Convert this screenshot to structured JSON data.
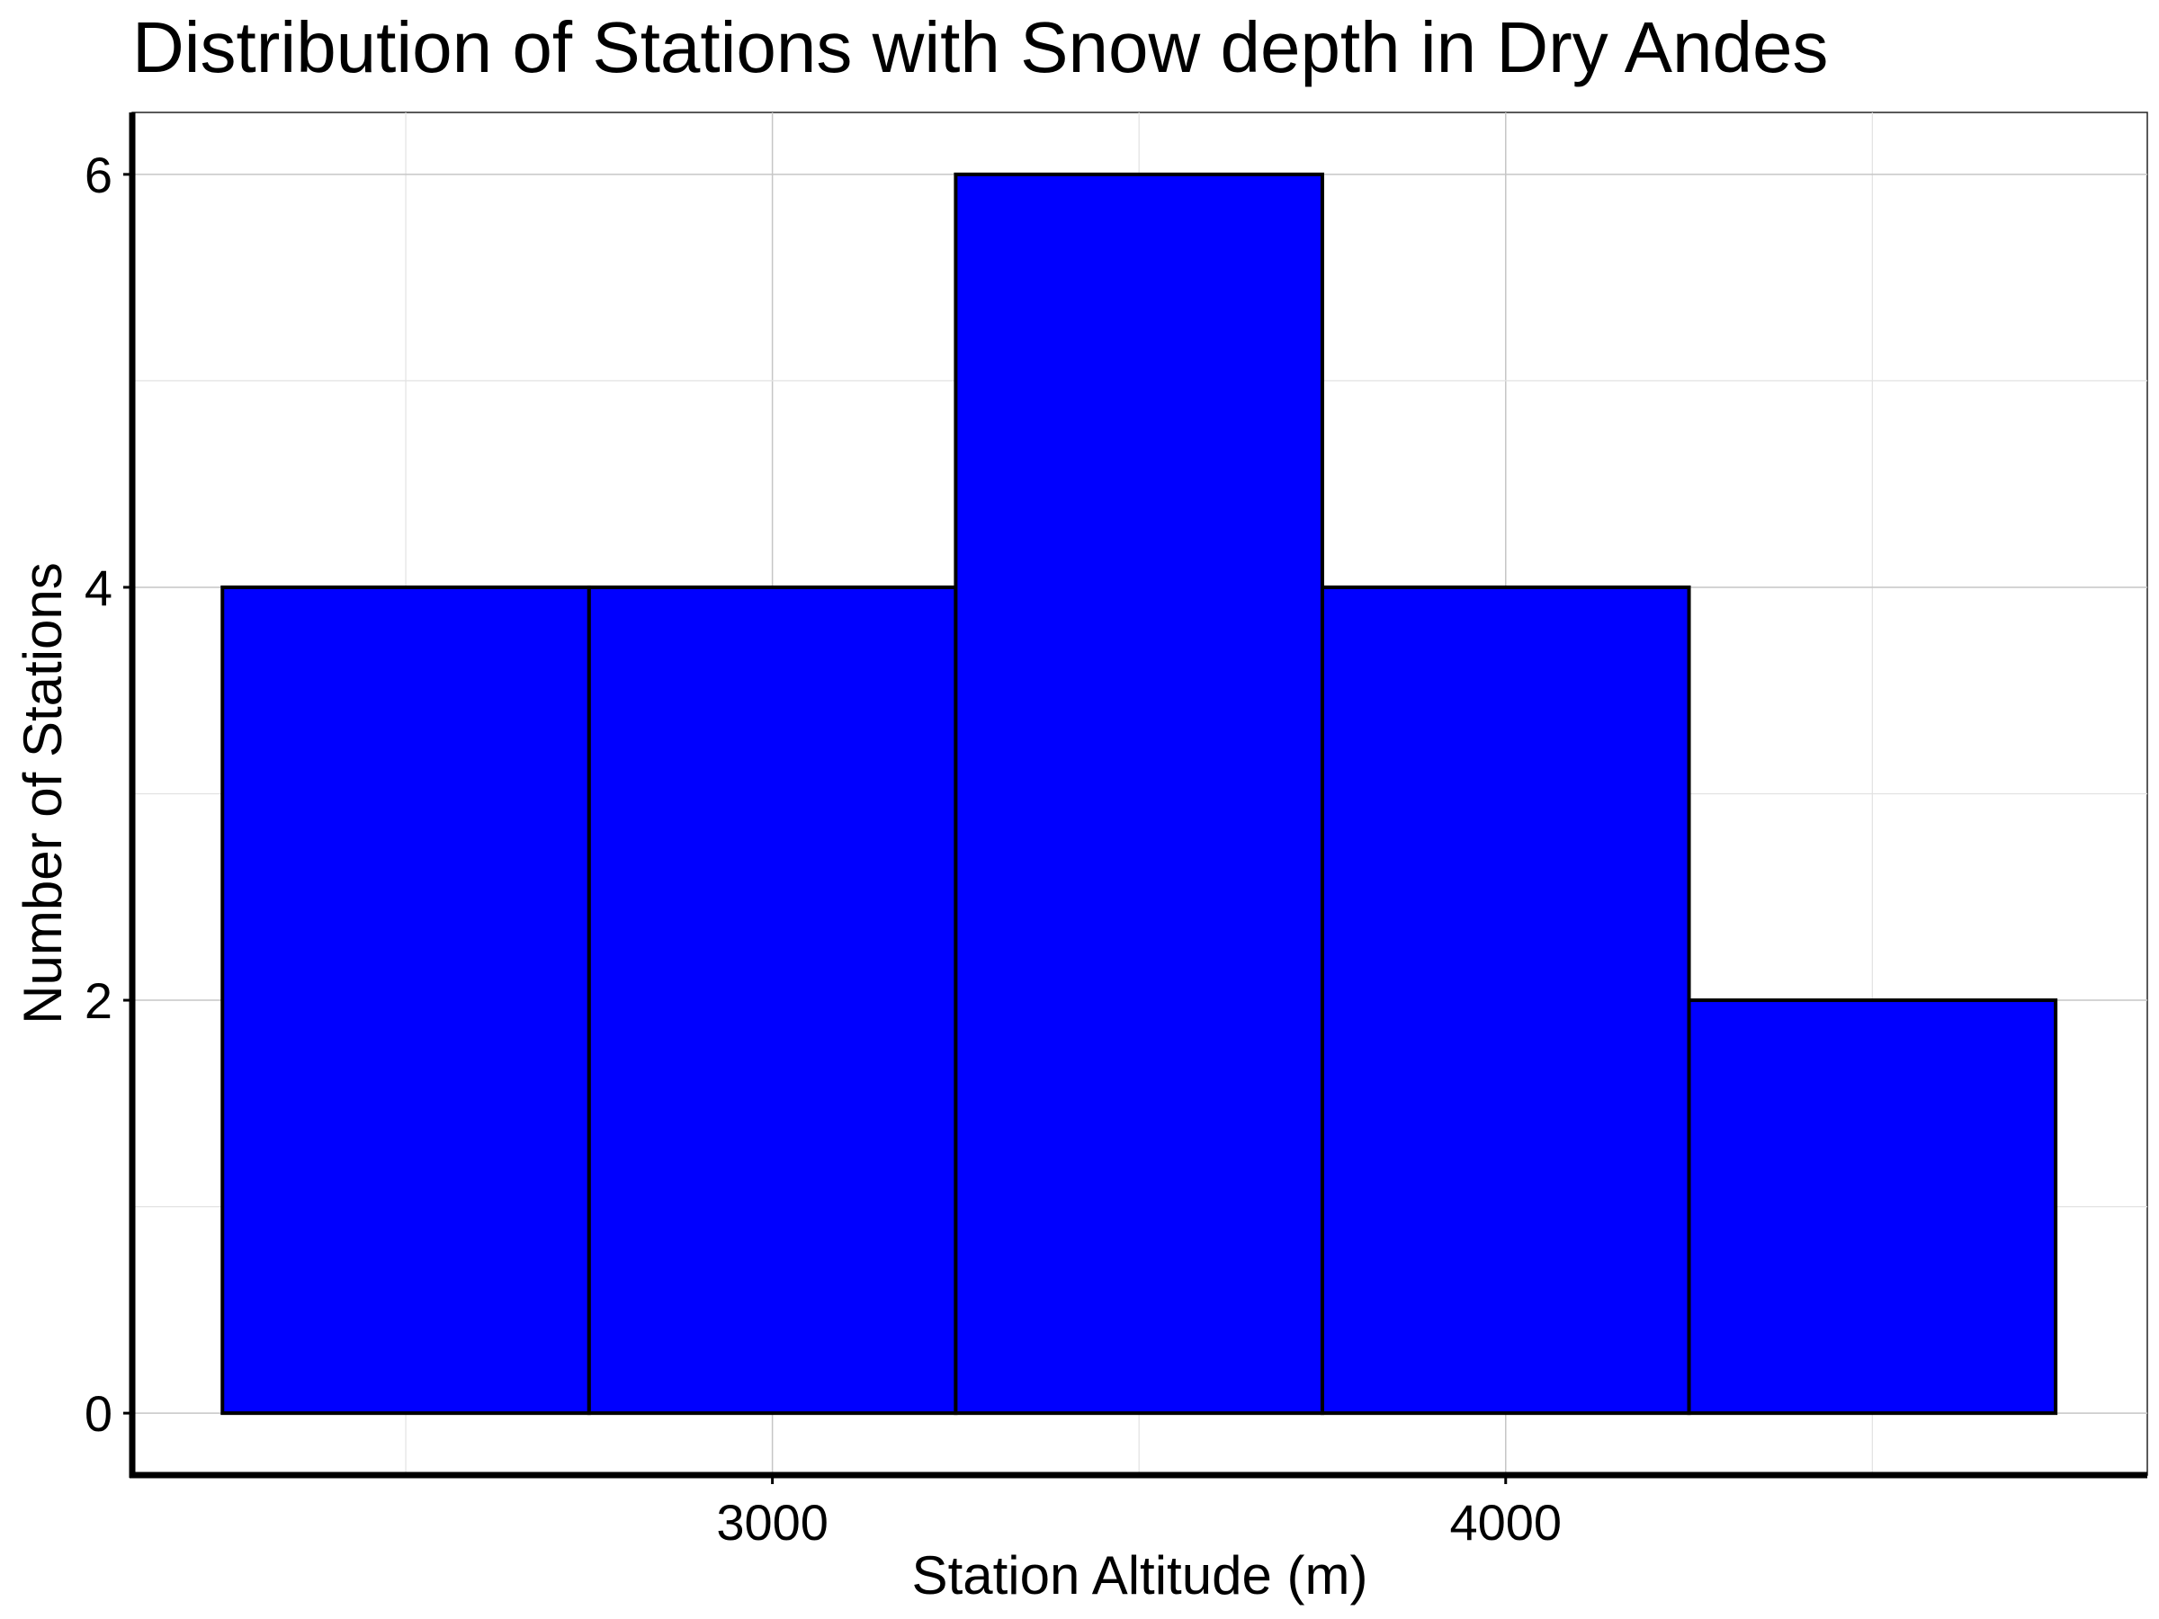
{
  "chart_data": {
    "type": "bar",
    "title": "Distribution of Stations with Snow depth in Dry Andes",
    "xlabel": "Station Altitude (m)",
    "ylabel": "Number of Stations",
    "bins": [
      {
        "x0": 2250,
        "x1": 2750,
        "count": 4
      },
      {
        "x0": 2750,
        "x1": 3250,
        "count": 4
      },
      {
        "x0": 3250,
        "x1": 3750,
        "count": 6
      },
      {
        "x0": 3750,
        "x1": 4250,
        "count": 4
      },
      {
        "x0": 4250,
        "x1": 4750,
        "count": 2
      }
    ],
    "x_ticks": [
      "3000",
      "4000"
    ],
    "y_ticks": [
      "0",
      "2",
      "4",
      "6"
    ],
    "xlim": [
      2127,
      4875
    ],
    "ylim": [
      -0.3,
      6.3
    ],
    "grid": true,
    "legend": "none",
    "colors": {
      "bar_fill": "#0000ff",
      "bar_edge": "#000000"
    }
  }
}
